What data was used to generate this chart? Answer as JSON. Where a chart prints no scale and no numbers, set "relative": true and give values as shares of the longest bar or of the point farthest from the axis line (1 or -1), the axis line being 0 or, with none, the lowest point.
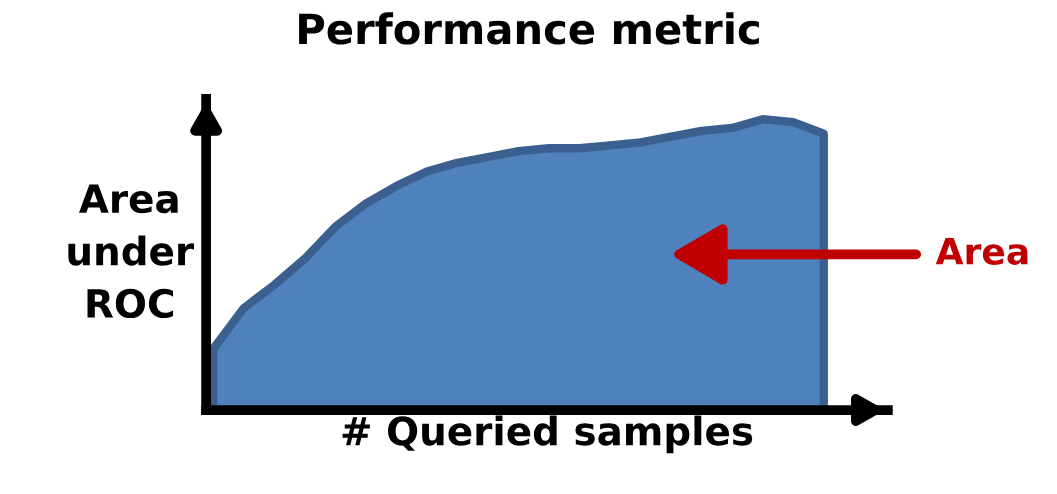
{
  "chart_data": {
    "type": "area",
    "title": "Performance metric",
    "xlabel": "# Queried samples",
    "ylabel": "Area\nunder\nROC",
    "relative": true,
    "categories": [
      null,
      null,
      null,
      null,
      null,
      null,
      null,
      null,
      null,
      null,
      null,
      null,
      null,
      null,
      null,
      null,
      null,
      null,
      null,
      null,
      null
    ],
    "series": [
      {
        "color": "#4f81bd",
        "values": [
          0.21,
          0.35,
          0.43,
          0.52,
          0.63,
          0.71,
          0.77,
          0.82,
          0.85,
          0.87,
          0.89,
          0.9,
          0.9,
          0.91,
          0.92,
          0.94,
          0.96,
          0.97,
          1.0,
          0.99,
          0.95
        ]
      }
    ],
    "annotations": [
      "Area"
    ]
  }
}
